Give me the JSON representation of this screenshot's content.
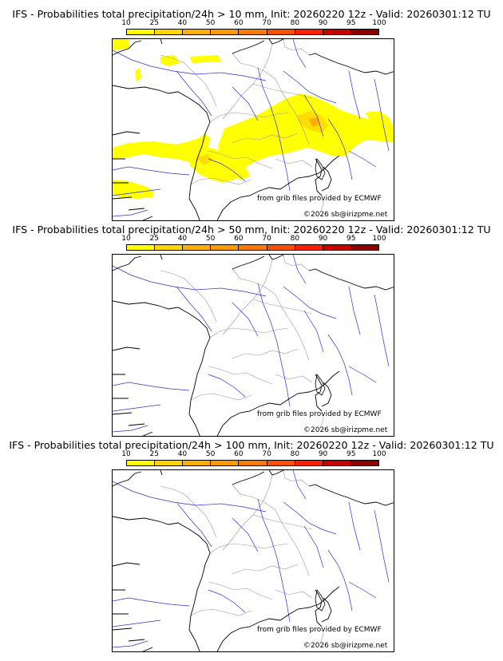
{
  "colorbar": {
    "ticks": [
      "10",
      "25",
      "40",
      "50",
      "60",
      "70",
      "80",
      "90",
      "95",
      "100"
    ],
    "colors": [
      "#ffff00",
      "#ffd400",
      "#ffb000",
      "#ff9a00",
      "#ff7a00",
      "#ff5000",
      "#ff1e00",
      "#c80000",
      "#8c0000"
    ]
  },
  "panels": [
    {
      "title": "IFS - Probabilities total precipitation/24h > 10 mm, Init: 20260220 12z - Valid: 20260301:12 TU",
      "source_credit": "from grib files provided by ECMWF",
      "copyright": "©2026 sb@irizpme.net",
      "precip_color": "#ffff00",
      "precip_core_color": "#ffd400",
      "precip_peak_color": "#ff9a00"
    },
    {
      "title": "IFS - Probabilities total precipitation/24h > 50 mm, Init: 20260220 12z - Valid: 20260301:12 TU",
      "source_credit": "from grib files provided by ECMWF",
      "copyright": "©2026 sb@irizpme.net"
    },
    {
      "title": "IFS - Probabilities total precipitation/24h > 100 mm, Init: 20260220 12z - Valid: 20260301:12 TU",
      "source_credit": "from grib files provided by ECMWF",
      "copyright": "©2026 sb@irizpme.net"
    }
  ],
  "map_colors": {
    "coast": "#000000",
    "rivers": "#3030d8",
    "borders": "#9a9a9a"
  }
}
